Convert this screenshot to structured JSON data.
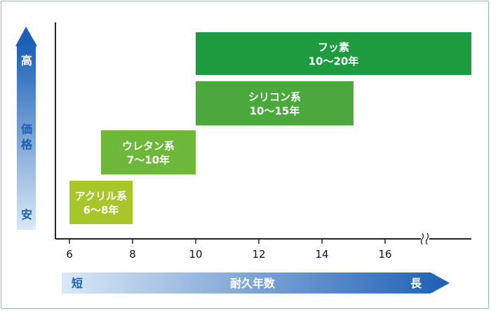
{
  "chart_data": {
    "type": "bar",
    "orientation": "horizontal-range",
    "title": "",
    "xlabel": "耐久年数",
    "ylabel": "価格",
    "x_ticks": [
      6,
      8,
      10,
      12,
      14,
      16
    ],
    "xlim": [
      6,
      18
    ],
    "x_axis_break": true,
    "y_arrow": {
      "top_label": "高",
      "middle_label": "価格",
      "bottom_label": "安"
    },
    "x_arrow": {
      "left_label": "短",
      "center_label": "耐久年数",
      "right_label": "長"
    },
    "series": [
      {
        "name": "アクリル系",
        "years_label": "6〜8年",
        "start": 6,
        "end": 8,
        "price_level": 1,
        "color": "#a8c62a"
      },
      {
        "name": "ウレタン系",
        "years_label": "7〜10年",
        "start": 7,
        "end": 10,
        "price_level": 2,
        "color": "#6db83a"
      },
      {
        "name": "シリコン系",
        "years_label": "10〜15年",
        "start": 10,
        "end": 15,
        "price_level": 3,
        "color": "#4aa83c"
      },
      {
        "name": "フッ素",
        "years_label": "10〜20年",
        "start": 10,
        "end": 20,
        "price_level": 4,
        "color": "#1e9a3f"
      }
    ],
    "grid": false,
    "legend": "none"
  }
}
